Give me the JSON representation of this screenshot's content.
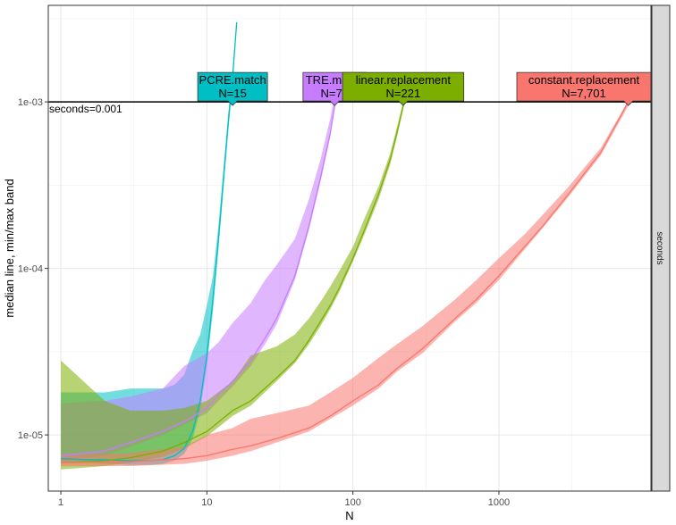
{
  "chart_data": {
    "type": "line",
    "xlabel": "N",
    "ylabel": "median line, min/max band",
    "x_scale": "log10",
    "y_scale": "log10",
    "xlim": [
      0.82,
      11000
    ],
    "ylim": [
      4.6e-06,
      0.0038
    ],
    "x_ticks": [
      {
        "value": 1,
        "label": "1"
      },
      {
        "value": 10,
        "label": "10"
      },
      {
        "value": 100,
        "label": "100"
      },
      {
        "value": 1000,
        "label": "1000"
      }
    ],
    "y_ticks": [
      {
        "value": 1e-05,
        "label": "1e-05"
      },
      {
        "value": 0.0001,
        "label": "1e-04"
      },
      {
        "value": 0.001,
        "label": "1e-03"
      }
    ],
    "grid": true,
    "facet_strip": "seconds",
    "reference_line": {
      "value": 0.001,
      "label": "seconds=0.001"
    },
    "series": [
      {
        "name": "PCRE.match",
        "color": "#00BFC4",
        "limit_label": "N=15",
        "limit_N": 15,
        "x": [
          1,
          1.5,
          2,
          3,
          4,
          5,
          6,
          7,
          8,
          9,
          10,
          11,
          12,
          13,
          14,
          15,
          16
        ],
        "median": [
          7.2e-06,
          7.1e-06,
          7.1e-06,
          7e-06,
          7e-06,
          7.1e-06,
          7.5e-06,
          8.3e-06,
          1.05e-05,
          1.6e-05,
          3e-05,
          6.5e-05,
          0.00015,
          0.00035,
          0.00075,
          0.0014,
          0.003
        ],
        "min": [
          6.8e-06,
          6.8e-06,
          6.7e-06,
          6.6e-06,
          6.6e-06,
          6.7e-06,
          7e-06,
          7.7e-06,
          9.5e-06,
          1.4e-05,
          2.6e-05,
          5.5e-05,
          0.00013,
          0.0003,
          0.00065,
          0.0013,
          0.0029
        ],
        "max": [
          1.8e-05,
          1.8e-05,
          1.8e-05,
          1.9e-05,
          1.9e-05,
          1.9e-05,
          2e-05,
          2.3e-05,
          3.2e-05,
          4e-05,
          6e-05,
          9e-05,
          0.00018,
          0.0004,
          0.00085,
          0.0015,
          0.0031
        ]
      },
      {
        "name": "TRE.match",
        "color": "#C77CFF",
        "limit_label": "N=75",
        "limit_N": 75,
        "x": [
          1,
          2,
          3,
          5,
          7,
          10,
          12,
          15,
          20,
          25,
          30,
          40,
          50,
          60,
          70,
          75,
          80
        ],
        "median": [
          7.5e-06,
          8e-06,
          9e-06,
          1.05e-05,
          1.2e-05,
          1.45e-05,
          1.75e-05,
          2.1e-05,
          2.8e-05,
          3.8e-05,
          5e-05,
          9e-05,
          0.00018,
          0.00035,
          0.00065,
          0.00095,
          0.0013
        ],
        "min": [
          7e-06,
          7.5e-06,
          8.5e-06,
          1e-05,
          1.15e-05,
          1.35e-05,
          1.6e-05,
          1.95e-05,
          2.6e-05,
          3.5e-05,
          4.6e-05,
          8.5e-05,
          0.00017,
          0.00033,
          0.00062,
          0.0009,
          0.00125
        ],
        "max": [
          1.55e-05,
          1.6e-05,
          1.7e-05,
          1.9e-05,
          2.6e-05,
          3.1e-05,
          3.6e-05,
          4.7e-05,
          6.2e-05,
          8.5e-05,
          0.000105,
          0.00015,
          0.00026,
          0.00045,
          0.0008,
          0.0011,
          0.0014
        ]
      },
      {
        "name": "linear.replacement",
        "color": "#7CAE00",
        "limit_label": "N=221",
        "limit_N": 221,
        "x": [
          1,
          2,
          3,
          5,
          7,
          10,
          15,
          20,
          30,
          40,
          50,
          60,
          70,
          80,
          100,
          120,
          150,
          180,
          200,
          221,
          240
        ],
        "median": [
          6.8e-06,
          7e-06,
          7.3e-06,
          8e-06,
          9e-06,
          1.05e-05,
          1.4e-05,
          1.6e-05,
          2.2e-05,
          2.8e-05,
          3.7e-05,
          4.8e-05,
          6e-05,
          7.5e-05,
          0.000115,
          0.00017,
          0.00028,
          0.00045,
          0.00065,
          0.00095,
          0.00125
        ],
        "min": [
          6.2e-06,
          6.5e-06,
          6.8e-06,
          7.4e-06,
          8.3e-06,
          9.8e-06,
          1.3e-05,
          1.5e-05,
          2.1e-05,
          2.7e-05,
          3.5e-05,
          4.5e-05,
          5.7e-05,
          7.1e-05,
          0.00011,
          0.00016,
          0.00026,
          0.00042,
          0.00061,
          0.0009,
          0.0012
        ],
        "max": [
          2.8e-05,
          1.6e-05,
          1.4e-05,
          1.4e-05,
          1.45e-05,
          1.6e-05,
          2.1e-05,
          3e-05,
          3.4e-05,
          4e-05,
          5e-05,
          6.3e-05,
          7.8e-05,
          9.5e-05,
          0.000135,
          0.0002,
          0.00031,
          0.00049,
          0.0007,
          0.001,
          0.0013
        ]
      },
      {
        "name": "constant.replacement",
        "color": "#F8766D",
        "limit_label": "N=7,701",
        "limit_N": 7701,
        "x": [
          1,
          3,
          7,
          10,
          15,
          20,
          30,
          50,
          70,
          100,
          150,
          200,
          300,
          500,
          700,
          1000,
          1500,
          2000,
          3000,
          5000,
          7701
        ],
        "median": [
          6.8e-06,
          6.9e-06,
          7.2e-06,
          7.5e-06,
          8.2e-06,
          8.6e-06,
          9.5e-06,
          1.1e-05,
          1.3e-05,
          1.6e-05,
          2e-05,
          2.5e-05,
          3.3e-05,
          5e-05,
          6.5e-05,
          9e-05,
          0.000135,
          0.00018,
          0.00028,
          0.0005,
          0.001
        ],
        "min": [
          6.5e-06,
          6.5e-06,
          6.7e-06,
          7e-06,
          7.5e-06,
          8e-06,
          9e-06,
          1.05e-05,
          1.25e-05,
          1.5e-05,
          1.9e-05,
          2.4e-05,
          3.1e-05,
          4.8e-05,
          6.2e-05,
          8.5e-05,
          0.00013,
          0.000175,
          0.00027,
          0.00048,
          0.00095
        ],
        "max": [
          7.5e-06,
          7.8e-06,
          8.5e-06,
          1e-05,
          1.1e-05,
          1.25e-05,
          1.35e-05,
          1.5e-05,
          1.8e-05,
          2.2e-05,
          2.9e-05,
          3.5e-05,
          4.5e-05,
          6.5e-05,
          8.5e-05,
          0.000115,
          0.00016,
          0.00021,
          0.00031,
          0.00053,
          0.00102
        ]
      }
    ]
  }
}
